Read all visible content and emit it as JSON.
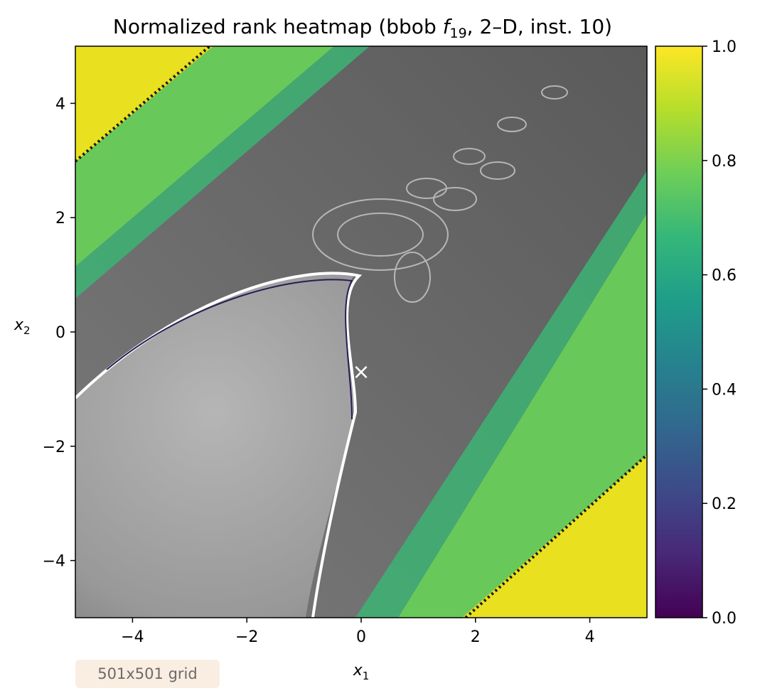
{
  "chart_data": {
    "type": "heatmap",
    "title": "Normalized rank heatmap (bbob f19, 2–D, inst. 10)",
    "title_parts": {
      "prefix": "Normalized rank heatmap (bbob ",
      "func_letter": "f",
      "func_sub": "19",
      "suffix": ", 2–D, inst. 10)"
    },
    "xlabel": {
      "letter": "x",
      "sub": "1"
    },
    "ylabel": {
      "letter": "x",
      "sub": "2"
    },
    "xlim": [
      -5,
      5
    ],
    "ylim": [
      -5,
      5
    ],
    "x_ticks": [
      -4,
      -2,
      0,
      2,
      4
    ],
    "y_ticks": [
      -4,
      -2,
      0,
      2,
      4
    ],
    "x_tick_labels": [
      "−4",
      "−2",
      "0",
      "2",
      "4"
    ],
    "y_tick_labels": [
      "−4",
      "−2",
      "0",
      "2",
      "4"
    ],
    "colorbar": {
      "colormap": "viridis",
      "range": [
        0.0,
        1.0
      ],
      "ticks": [
        0.0,
        0.2,
        0.4,
        0.6,
        0.8,
        1.0
      ],
      "tick_labels": [
        "0.0",
        "0.2",
        "0.4",
        "0.6",
        "0.8",
        "1.0"
      ],
      "stops": [
        "#440154",
        "#482878",
        "#3e4a89",
        "#31688e",
        "#26828e",
        "#1f9e89",
        "#35b779",
        "#6ece58",
        "#b5de2b",
        "#fde725"
      ]
    },
    "optimum_marker": {
      "x": 0.0,
      "y": -0.7,
      "symbol": "×",
      "color": "#ffffff"
    },
    "grid": false,
    "annotation": "501x501 grid"
  }
}
